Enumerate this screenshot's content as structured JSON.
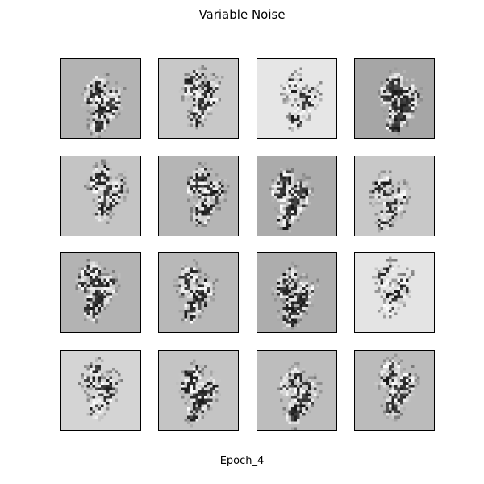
{
  "figure": {
    "title": "Variable Noise",
    "caption": "Epoch_4"
  },
  "grid": {
    "rows": 4,
    "cols": 4,
    "tiles": [
      {
        "bg": "#b3b3b3",
        "ink": 0.85
      },
      {
        "bg": "#c8c8c8",
        "ink": 0.75
      },
      {
        "bg": "#e6e6e6",
        "ink": 0.55
      },
      {
        "bg": "#a6a6a6",
        "ink": 1.0
      },
      {
        "bg": "#c4c4c4",
        "ink": 0.7
      },
      {
        "bg": "#b5b5b5",
        "ink": 0.8
      },
      {
        "bg": "#ababab",
        "ink": 0.95
      },
      {
        "bg": "#c8c8c8",
        "ink": 0.6
      },
      {
        "bg": "#b3b3b3",
        "ink": 0.85
      },
      {
        "bg": "#b8b8b8",
        "ink": 0.8
      },
      {
        "bg": "#adadad",
        "ink": 0.9
      },
      {
        "bg": "#e4e4e4",
        "ink": 0.55
      },
      {
        "bg": "#d4d4d4",
        "ink": 0.6
      },
      {
        "bg": "#c4c4c4",
        "ink": 0.8
      },
      {
        "bg": "#bdbdbd",
        "ink": 0.8
      },
      {
        "bg": "#bbbbbb",
        "ink": 0.75
      }
    ]
  }
}
